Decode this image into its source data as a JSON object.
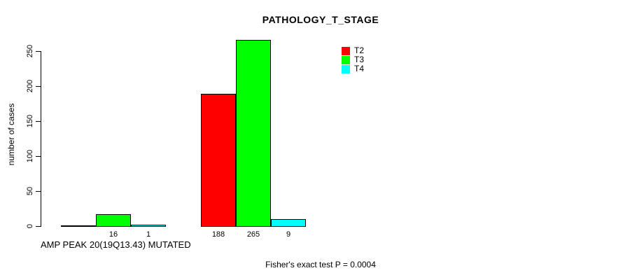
{
  "title": "PATHOLOGY_T_STAGE",
  "chart_data": {
    "type": "bar",
    "title": "PATHOLOGY_T_STAGE",
    "xlabel": "AMP PEAK 20(19Q13.43) MUTATED",
    "ylabel": "number of cases",
    "ylim": [
      0,
      250
    ],
    "yticks": [
      0,
      50,
      100,
      150,
      200,
      250
    ],
    "grid": false,
    "legend_position": "inside-top-right",
    "categories": [
      "AMP PEAK 20(19Q13.43) MUTATED",
      ""
    ],
    "series": [
      {
        "name": "T2",
        "color": "#ff0000",
        "values": [
          0,
          188
        ],
        "bar_labels": [
          "",
          "188"
        ]
      },
      {
        "name": "T3",
        "color": "#00ff00",
        "values": [
          16,
          265
        ],
        "bar_labels": [
          "16",
          "265"
        ]
      },
      {
        "name": "T4",
        "color": "#00ffff",
        "values": [
          1,
          9
        ],
        "bar_labels": [
          "1",
          "9"
        ]
      }
    ],
    "footnote": "Fisher's exact test P = 0.0004"
  }
}
